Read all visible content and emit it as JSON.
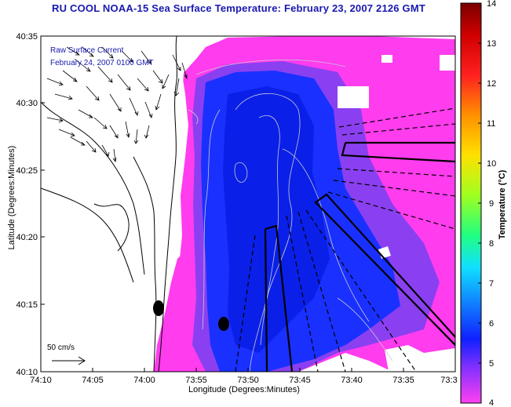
{
  "title": "RU COOL  NOAA-15  Sea Surface Temperature:  February 23, 2007 2126 GMT",
  "legend": {
    "line1": "Raw Surface Current",
    "line2": "February 24, 2007 0100 GMT"
  },
  "axes": {
    "ylabel": "Latitude (Degrees:Minutes)",
    "xlabel": "Longitude (Degrees:Minutes)",
    "y_ticks": [
      "40:35",
      "40:30",
      "40:25",
      "40:20",
      "40:15",
      "40:10"
    ],
    "x_ticks": [
      "74:10",
      "74:05",
      "74:00",
      "73:55",
      "73:50",
      "73:45",
      "73:40",
      "73:35",
      "73:3"
    ]
  },
  "scale_label": "50 cm/s",
  "colorbar": {
    "label": "Temperature (°C)",
    "ticks": [
      "14",
      "13",
      "12",
      "11",
      "10",
      "9",
      "8",
      "7",
      "6",
      "5",
      "4"
    ],
    "min": 4,
    "max": 14
  },
  "colors": {
    "title": "#1818b0",
    "warm_sst": "#ff33ee",
    "cold_sst": "#1530ff",
    "land": "#ffffff"
  }
}
